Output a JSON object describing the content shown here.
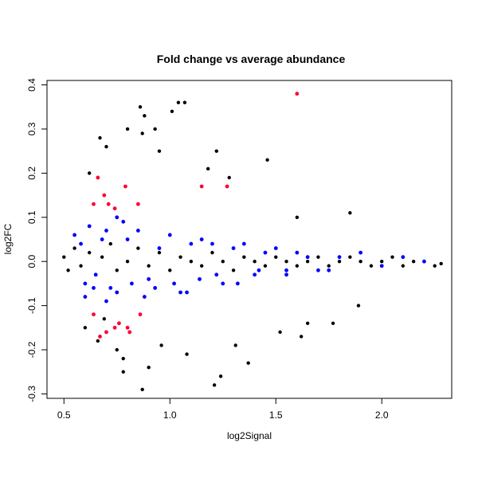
{
  "chart_data": {
    "type": "scatter",
    "title": "Fold change vs average abundance",
    "xlabel": "log2Signal",
    "ylabel": "log2FC",
    "xlim": [
      0.42,
      2.33
    ],
    "ylim": [
      -0.31,
      0.41
    ],
    "x_ticks": [
      0.5,
      1.0,
      1.5,
      2.0
    ],
    "x_tick_labels": [
      "0.5",
      "1.0",
      "1.5",
      "2.0"
    ],
    "y_ticks": [
      -0.3,
      -0.2,
      -0.1,
      0.0,
      0.1,
      0.2,
      0.3,
      0.4
    ],
    "y_tick_labels": [
      "-0.3",
      "-0.2",
      "-0.1",
      "0.0",
      "0.1",
      "0.2",
      "0.3",
      "0.4"
    ],
    "grid": false,
    "legend": "none",
    "colors": {
      "main": "#000000",
      "blue_group": "#0000ff",
      "red_group": "#ff0033"
    },
    "series": [
      {
        "color": "#000000",
        "x": [
          0.5,
          0.52,
          0.55,
          0.58,
          0.62,
          0.65,
          0.68,
          0.72,
          0.75,
          0.8,
          0.85,
          0.9,
          0.95,
          1.0,
          1.05,
          1.1,
          1.15,
          1.2,
          1.25,
          1.3,
          1.35,
          1.4,
          1.45,
          1.5,
          1.55,
          1.6,
          1.65,
          1.7,
          1.75,
          1.8,
          1.85,
          1.9,
          1.95,
          2.0,
          2.05,
          2.1,
          2.15,
          2.2,
          2.25,
          2.28,
          0.86,
          0.88,
          0.93,
          1.04,
          1.07,
          1.01,
          1.18,
          1.46,
          0.62,
          0.67,
          0.7,
          0.8,
          0.87,
          0.95,
          1.22,
          1.28,
          1.6,
          1.85,
          0.75,
          0.78,
          0.9,
          1.08,
          1.21,
          1.37,
          1.52,
          0.87,
          0.78,
          0.96,
          1.24,
          1.31,
          1.62,
          1.65,
          1.77,
          1.89,
          0.6,
          0.66,
          0.69
        ],
        "y": [
          0.01,
          -0.02,
          0.03,
          -0.01,
          0.02,
          -0.03,
          0.01,
          0.04,
          -0.02,
          0.0,
          0.03,
          -0.01,
          0.02,
          -0.02,
          0.01,
          0.0,
          -0.01,
          0.02,
          0.0,
          -0.02,
          0.01,
          0.0,
          -0.01,
          0.01,
          0.0,
          -0.01,
          0.0,
          0.01,
          -0.01,
          0.0,
          0.01,
          0.0,
          -0.01,
          0.0,
          0.01,
          -0.01,
          0.0,
          0.0,
          -0.01,
          -0.005,
          0.35,
          0.33,
          0.3,
          0.36,
          0.36,
          0.34,
          0.21,
          0.23,
          0.2,
          0.28,
          0.26,
          0.3,
          0.29,
          0.25,
          0.25,
          0.19,
          0.1,
          0.11,
          -0.2,
          -0.22,
          -0.24,
          -0.21,
          -0.28,
          -0.23,
          -0.16,
          -0.29,
          -0.25,
          -0.19,
          -0.26,
          -0.19,
          -0.17,
          -0.14,
          -0.14,
          -0.1,
          -0.15,
          -0.18,
          -0.13
        ]
      },
      {
        "color": "#0000ff",
        "x": [
          0.55,
          0.58,
          0.6,
          0.62,
          0.65,
          0.68,
          0.7,
          0.72,
          0.75,
          0.78,
          0.8,
          0.85,
          0.9,
          0.95,
          1.0,
          1.05,
          1.1,
          1.15,
          1.2,
          1.25,
          1.3,
          1.35,
          1.4,
          1.45,
          1.5,
          1.55,
          1.6,
          1.65,
          1.7,
          1.8,
          1.9,
          2.0,
          2.1,
          2.2,
          0.6,
          0.64,
          0.7,
          0.75,
          0.82,
          0.88,
          0.93,
          1.02,
          1.08,
          1.14,
          1.22,
          1.32,
          1.42,
          1.55,
          1.75
        ],
        "y": [
          0.06,
          0.04,
          -0.05,
          0.08,
          -0.03,
          0.05,
          0.07,
          -0.06,
          0.1,
          0.09,
          0.05,
          0.07,
          -0.04,
          0.03,
          0.06,
          -0.07,
          0.04,
          0.05,
          0.04,
          -0.05,
          0.03,
          0.04,
          -0.03,
          0.02,
          0.03,
          -0.02,
          0.02,
          0.01,
          -0.02,
          0.01,
          0.02,
          -0.01,
          0.01,
          0.0,
          -0.08,
          -0.06,
          -0.09,
          -0.07,
          -0.05,
          -0.08,
          -0.06,
          -0.05,
          -0.07,
          -0.04,
          -0.03,
          -0.05,
          -0.02,
          -0.03,
          -0.02
        ]
      },
      {
        "color": "#ff0033",
        "x": [
          0.64,
          0.66,
          0.69,
          0.71,
          0.74,
          0.79,
          0.85,
          1.15,
          1.27,
          1.6,
          0.64,
          0.67,
          0.7,
          0.74,
          0.76,
          0.8,
          0.81,
          0.86
        ],
        "y": [
          0.13,
          0.19,
          0.15,
          0.13,
          0.12,
          0.17,
          0.13,
          0.17,
          0.17,
          0.38,
          -0.12,
          -0.17,
          -0.16,
          -0.15,
          -0.14,
          -0.15,
          -0.16,
          -0.12
        ]
      }
    ]
  }
}
